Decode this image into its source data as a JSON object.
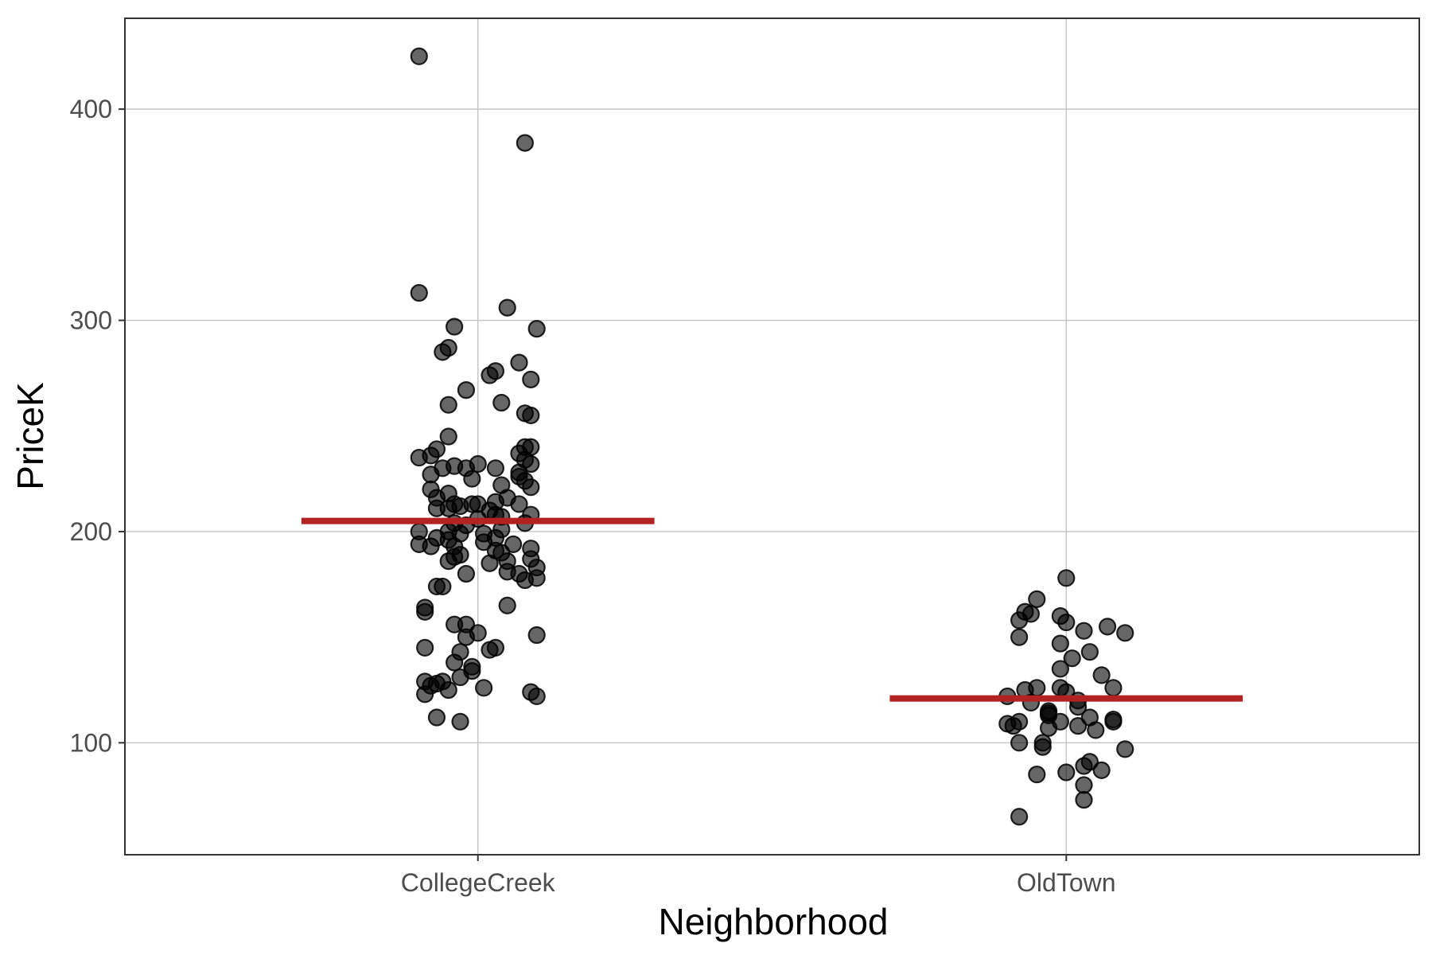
{
  "chart_data": {
    "type": "scatter",
    "xlabel": "Neighborhood",
    "ylabel": "PriceK",
    "ylim": [
      47,
      443
    ],
    "yticks": [
      100,
      200,
      300,
      400
    ],
    "categories": [
      "CollegeCreek",
      "OldTown"
    ],
    "grid": true,
    "point_color": "#000000",
    "mean_color": "#b22222",
    "means": [
      205,
      121
    ],
    "points": [
      {
        "category": "CollegeCreek",
        "values": [
          {
            "jitter": -0.1,
            "y": 425
          },
          {
            "jitter": 0.08,
            "y": 384
          },
          {
            "jitter": -0.1,
            "y": 313
          },
          {
            "jitter": 0.05,
            "y": 306
          },
          {
            "jitter": -0.04,
            "y": 297
          },
          {
            "jitter": 0.1,
            "y": 296
          },
          {
            "jitter": -0.05,
            "y": 287
          },
          {
            "jitter": -0.06,
            "y": 285
          },
          {
            "jitter": 0.07,
            "y": 280
          },
          {
            "jitter": 0.03,
            "y": 276
          },
          {
            "jitter": 0.02,
            "y": 274
          },
          {
            "jitter": 0.09,
            "y": 272
          },
          {
            "jitter": -0.02,
            "y": 267
          },
          {
            "jitter": 0.04,
            "y": 261
          },
          {
            "jitter": -0.05,
            "y": 260
          },
          {
            "jitter": 0.08,
            "y": 256
          },
          {
            "jitter": 0.09,
            "y": 255
          },
          {
            "jitter": -0.05,
            "y": 245
          },
          {
            "jitter": 0.09,
            "y": 240
          },
          {
            "jitter": 0.08,
            "y": 240
          },
          {
            "jitter": -0.07,
            "y": 239
          },
          {
            "jitter": 0.07,
            "y": 237
          },
          {
            "jitter": -0.08,
            "y": 236
          },
          {
            "jitter": -0.1,
            "y": 235
          },
          {
            "jitter": 0.08,
            "y": 234
          },
          {
            "jitter": 0.09,
            "y": 232
          },
          {
            "jitter": 0.0,
            "y": 232
          },
          {
            "jitter": -0.04,
            "y": 231
          },
          {
            "jitter": -0.06,
            "y": 230
          },
          {
            "jitter": -0.02,
            "y": 230
          },
          {
            "jitter": 0.03,
            "y": 230
          },
          {
            "jitter": 0.07,
            "y": 228
          },
          {
            "jitter": -0.08,
            "y": 227
          },
          {
            "jitter": 0.07,
            "y": 226
          },
          {
            "jitter": -0.01,
            "y": 225
          },
          {
            "jitter": 0.08,
            "y": 224
          },
          {
            "jitter": 0.04,
            "y": 222
          },
          {
            "jitter": 0.09,
            "y": 221
          },
          {
            "jitter": -0.08,
            "y": 220
          },
          {
            "jitter": -0.05,
            "y": 218
          },
          {
            "jitter": -0.07,
            "y": 216
          },
          {
            "jitter": 0.05,
            "y": 216
          },
          {
            "jitter": 0.03,
            "y": 214
          },
          {
            "jitter": -0.04,
            "y": 213
          },
          {
            "jitter": 0.0,
            "y": 213
          },
          {
            "jitter": -0.01,
            "y": 213
          },
          {
            "jitter": 0.07,
            "y": 213
          },
          {
            "jitter": -0.03,
            "y": 212
          },
          {
            "jitter": -0.05,
            "y": 211
          },
          {
            "jitter": -0.07,
            "y": 211
          },
          {
            "jitter": 0.02,
            "y": 210
          },
          {
            "jitter": 0.03,
            "y": 208
          },
          {
            "jitter": 0.09,
            "y": 208
          },
          {
            "jitter": 0.04,
            "y": 207
          },
          {
            "jitter": 0.0,
            "y": 206
          },
          {
            "jitter": 0.08,
            "y": 204
          },
          {
            "jitter": -0.04,
            "y": 204
          },
          {
            "jitter": -0.02,
            "y": 203
          },
          {
            "jitter": 0.04,
            "y": 201
          },
          {
            "jitter": -0.1,
            "y": 200
          },
          {
            "jitter": -0.05,
            "y": 200
          },
          {
            "jitter": -0.03,
            "y": 199
          },
          {
            "jitter": 0.01,
            "y": 199
          },
          {
            "jitter": 0.03,
            "y": 197
          },
          {
            "jitter": -0.07,
            "y": 197
          },
          {
            "jitter": -0.05,
            "y": 196
          },
          {
            "jitter": 0.01,
            "y": 195
          },
          {
            "jitter": -0.1,
            "y": 194
          },
          {
            "jitter": 0.06,
            "y": 194
          },
          {
            "jitter": -0.08,
            "y": 193
          },
          {
            "jitter": -0.04,
            "y": 193
          },
          {
            "jitter": 0.09,
            "y": 192
          },
          {
            "jitter": 0.03,
            "y": 191
          },
          {
            "jitter": 0.04,
            "y": 190
          },
          {
            "jitter": -0.03,
            "y": 189
          },
          {
            "jitter": -0.04,
            "y": 188
          },
          {
            "jitter": 0.09,
            "y": 187
          },
          {
            "jitter": -0.05,
            "y": 186
          },
          {
            "jitter": 0.05,
            "y": 186
          },
          {
            "jitter": 0.02,
            "y": 185
          },
          {
            "jitter": 0.1,
            "y": 183
          },
          {
            "jitter": 0.05,
            "y": 181
          },
          {
            "jitter": 0.07,
            "y": 180
          },
          {
            "jitter": -0.02,
            "y": 180
          },
          {
            "jitter": 0.1,
            "y": 178
          },
          {
            "jitter": 0.08,
            "y": 177
          },
          {
            "jitter": -0.07,
            "y": 174
          },
          {
            "jitter": -0.06,
            "y": 174
          },
          {
            "jitter": 0.05,
            "y": 165
          },
          {
            "jitter": -0.09,
            "y": 164
          },
          {
            "jitter": -0.09,
            "y": 162
          },
          {
            "jitter": -0.04,
            "y": 156
          },
          {
            "jitter": -0.02,
            "y": 156
          },
          {
            "jitter": 0.0,
            "y": 152
          },
          {
            "jitter": 0.1,
            "y": 151
          },
          {
            "jitter": -0.02,
            "y": 150
          },
          {
            "jitter": -0.09,
            "y": 145
          },
          {
            "jitter": 0.03,
            "y": 145
          },
          {
            "jitter": 0.02,
            "y": 144
          },
          {
            "jitter": -0.03,
            "y": 143
          },
          {
            "jitter": -0.04,
            "y": 138
          },
          {
            "jitter": -0.01,
            "y": 136
          },
          {
            "jitter": -0.01,
            "y": 134
          },
          {
            "jitter": -0.03,
            "y": 131
          },
          {
            "jitter": -0.09,
            "y": 129
          },
          {
            "jitter": -0.06,
            "y": 129
          },
          {
            "jitter": -0.07,
            "y": 128
          },
          {
            "jitter": -0.08,
            "y": 127
          },
          {
            "jitter": 0.01,
            "y": 126
          },
          {
            "jitter": -0.05,
            "y": 125
          },
          {
            "jitter": 0.09,
            "y": 124
          },
          {
            "jitter": -0.09,
            "y": 123
          },
          {
            "jitter": 0.1,
            "y": 122
          },
          {
            "jitter": -0.07,
            "y": 112
          },
          {
            "jitter": -0.03,
            "y": 110
          }
        ]
      },
      {
        "category": "OldTown",
        "values": [
          {
            "jitter": 0.0,
            "y": 178
          },
          {
            "jitter": -0.05,
            "y": 168
          },
          {
            "jitter": -0.07,
            "y": 162
          },
          {
            "jitter": -0.06,
            "y": 161
          },
          {
            "jitter": -0.01,
            "y": 160
          },
          {
            "jitter": -0.08,
            "y": 158
          },
          {
            "jitter": 0.0,
            "y": 157
          },
          {
            "jitter": 0.07,
            "y": 155
          },
          {
            "jitter": 0.03,
            "y": 153
          },
          {
            "jitter": 0.1,
            "y": 152
          },
          {
            "jitter": -0.08,
            "y": 150
          },
          {
            "jitter": -0.01,
            "y": 147
          },
          {
            "jitter": 0.04,
            "y": 143
          },
          {
            "jitter": 0.01,
            "y": 140
          },
          {
            "jitter": -0.01,
            "y": 135
          },
          {
            "jitter": 0.06,
            "y": 132
          },
          {
            "jitter": 0.08,
            "y": 126
          },
          {
            "jitter": -0.05,
            "y": 126
          },
          {
            "jitter": -0.01,
            "y": 126
          },
          {
            "jitter": -0.07,
            "y": 125
          },
          {
            "jitter": 0.0,
            "y": 124
          },
          {
            "jitter": -0.1,
            "y": 122
          },
          {
            "jitter": 0.02,
            "y": 120
          },
          {
            "jitter": -0.06,
            "y": 119
          },
          {
            "jitter": 0.02,
            "y": 117
          },
          {
            "jitter": -0.03,
            "y": 115
          },
          {
            "jitter": -0.03,
            "y": 114
          },
          {
            "jitter": -0.03,
            "y": 113
          },
          {
            "jitter": 0.04,
            "y": 112
          },
          {
            "jitter": 0.08,
            "y": 111
          },
          {
            "jitter": 0.08,
            "y": 110
          },
          {
            "jitter": -0.08,
            "y": 110
          },
          {
            "jitter": -0.01,
            "y": 110
          },
          {
            "jitter": -0.1,
            "y": 109
          },
          {
            "jitter": -0.09,
            "y": 108
          },
          {
            "jitter": 0.02,
            "y": 108
          },
          {
            "jitter": -0.03,
            "y": 107
          },
          {
            "jitter": 0.05,
            "y": 106
          },
          {
            "jitter": -0.08,
            "y": 100
          },
          {
            "jitter": -0.04,
            "y": 100
          },
          {
            "jitter": -0.04,
            "y": 98
          },
          {
            "jitter": 0.1,
            "y": 97
          },
          {
            "jitter": 0.04,
            "y": 91
          },
          {
            "jitter": 0.03,
            "y": 89
          },
          {
            "jitter": 0.06,
            "y": 87
          },
          {
            "jitter": -0.05,
            "y": 85
          },
          {
            "jitter": 0.0,
            "y": 86
          },
          {
            "jitter": 0.03,
            "y": 80
          },
          {
            "jitter": 0.03,
            "y": 73
          },
          {
            "jitter": -0.08,
            "y": 65
          }
        ]
      }
    ]
  }
}
